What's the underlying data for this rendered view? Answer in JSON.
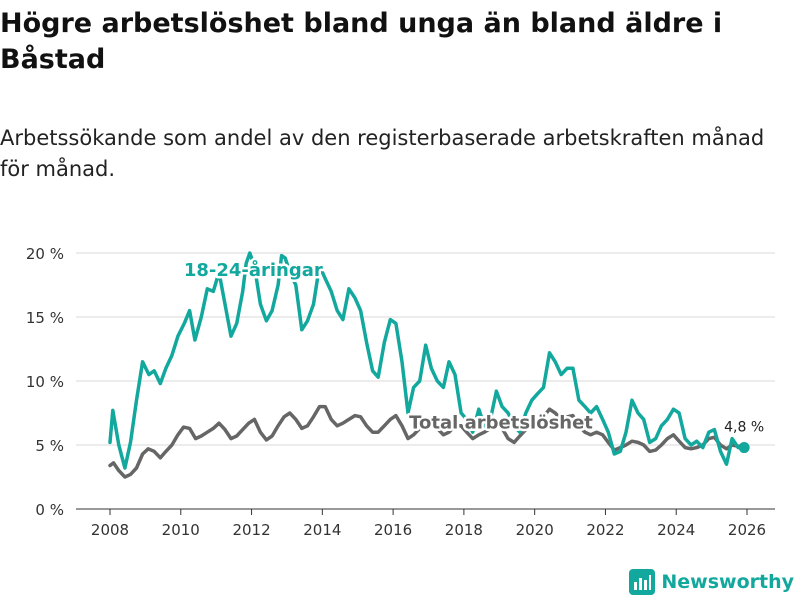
{
  "page": {
    "title": "Högre arbetslöshet bland unga än bland äldre i Båstad",
    "subtitle": "Arbetssökande som andel av den registerbaserade arbetskraften månad för månad."
  },
  "brand": {
    "name": "Newsworthy",
    "icon": "bar-chart-logo-icon",
    "color": "#13a89e"
  },
  "chart_data": {
    "type": "line",
    "title": "Högre arbetslöshet bland unga än bland äldre i Båstad",
    "subtitle": "Arbetssökande som andel av den registerbaserade arbetskraften månad för månad.",
    "xlabel": "",
    "ylabel": "",
    "xlim": [
      2007.5,
      2026.6
    ],
    "ylim": [
      0,
      20
    ],
    "x_ticks": [
      2008,
      2010,
      2012,
      2014,
      2016,
      2018,
      2020,
      2022,
      2024,
      2026
    ],
    "x_tick_labels": [
      "2008",
      "2010",
      "2012",
      "2014",
      "2016",
      "2018",
      "2020",
      "2022",
      "2024",
      "2026"
    ],
    "y_ticks": [
      0,
      5,
      10,
      15,
      20
    ],
    "y_tick_labels": [
      "0 %",
      "5 %",
      "10 %",
      "15 %",
      "20 %"
    ],
    "grid": "horizontal",
    "series": [
      {
        "name": "18-24-åringar",
        "label": "18-24-åringar",
        "color": "#13a89e",
        "points": [
          [
            2008.0,
            5.2
          ],
          [
            2008.08,
            7.7
          ],
          [
            2008.25,
            5.0
          ],
          [
            2008.42,
            3.2
          ],
          [
            2008.58,
            5.2
          ],
          [
            2008.75,
            8.5
          ],
          [
            2008.92,
            11.5
          ],
          [
            2009.1,
            10.5
          ],
          [
            2009.25,
            10.8
          ],
          [
            2009.42,
            9.8
          ],
          [
            2009.58,
            11.0
          ],
          [
            2009.75,
            12.0
          ],
          [
            2009.92,
            13.5
          ],
          [
            2010.1,
            14.5
          ],
          [
            2010.25,
            15.5
          ],
          [
            2010.4,
            13.2
          ],
          [
            2010.58,
            15.0
          ],
          [
            2010.75,
            17.2
          ],
          [
            2010.92,
            17.0
          ],
          [
            2011.08,
            18.5
          ],
          [
            2011.25,
            16.0
          ],
          [
            2011.42,
            13.5
          ],
          [
            2011.58,
            14.5
          ],
          [
            2011.75,
            17.0
          ],
          [
            2011.85,
            19.2
          ],
          [
            2011.95,
            20.0
          ],
          [
            2012.08,
            19.0
          ],
          [
            2012.25,
            16.0
          ],
          [
            2012.42,
            14.7
          ],
          [
            2012.58,
            15.5
          ],
          [
            2012.75,
            17.5
          ],
          [
            2012.85,
            19.8
          ],
          [
            2012.95,
            19.6
          ],
          [
            2013.08,
            18.5
          ],
          [
            2013.25,
            17.5
          ],
          [
            2013.42,
            14.0
          ],
          [
            2013.58,
            14.7
          ],
          [
            2013.75,
            16.0
          ],
          [
            2013.92,
            19.0
          ],
          [
            2014.08,
            18.0
          ],
          [
            2014.25,
            17.0
          ],
          [
            2014.42,
            15.5
          ],
          [
            2014.58,
            14.8
          ],
          [
            2014.75,
            17.2
          ],
          [
            2014.92,
            16.5
          ],
          [
            2015.08,
            15.5
          ],
          [
            2015.25,
            13.0
          ],
          [
            2015.42,
            10.8
          ],
          [
            2015.58,
            10.3
          ],
          [
            2015.75,
            13.0
          ],
          [
            2015.92,
            14.8
          ],
          [
            2016.08,
            14.5
          ],
          [
            2016.25,
            11.5
          ],
          [
            2016.42,
            7.5
          ],
          [
            2016.58,
            9.5
          ],
          [
            2016.75,
            10.0
          ],
          [
            2016.92,
            12.8
          ],
          [
            2017.08,
            11.0
          ],
          [
            2017.25,
            10.0
          ],
          [
            2017.42,
            9.5
          ],
          [
            2017.58,
            11.5
          ],
          [
            2017.75,
            10.5
          ],
          [
            2017.92,
            7.5
          ],
          [
            2018.08,
            7.0
          ],
          [
            2018.25,
            6.0
          ],
          [
            2018.42,
            7.8
          ],
          [
            2018.58,
            6.5
          ],
          [
            2018.75,
            7.0
          ],
          [
            2018.92,
            9.2
          ],
          [
            2019.08,
            8.0
          ],
          [
            2019.25,
            7.5
          ],
          [
            2019.42,
            6.5
          ],
          [
            2019.58,
            6.0
          ],
          [
            2019.75,
            7.5
          ],
          [
            2019.92,
            8.5
          ],
          [
            2020.08,
            9.0
          ],
          [
            2020.25,
            9.5
          ],
          [
            2020.42,
            12.2
          ],
          [
            2020.58,
            11.5
          ],
          [
            2020.75,
            10.5
          ],
          [
            2020.92,
            11.0
          ],
          [
            2021.08,
            11.0
          ],
          [
            2021.25,
            8.5
          ],
          [
            2021.42,
            8.0
          ],
          [
            2021.58,
            7.5
          ],
          [
            2021.75,
            8.0
          ],
          [
            2021.92,
            7.0
          ],
          [
            2022.08,
            6.0
          ],
          [
            2022.25,
            4.3
          ],
          [
            2022.42,
            4.5
          ],
          [
            2022.58,
            6.0
          ],
          [
            2022.75,
            8.5
          ],
          [
            2022.92,
            7.5
          ],
          [
            2023.08,
            7.0
          ],
          [
            2023.25,
            5.2
          ],
          [
            2023.42,
            5.5
          ],
          [
            2023.58,
            6.5
          ],
          [
            2023.75,
            7.0
          ],
          [
            2023.92,
            7.8
          ],
          [
            2024.08,
            7.5
          ],
          [
            2024.25,
            5.5
          ],
          [
            2024.42,
            5.0
          ],
          [
            2024.58,
            5.3
          ],
          [
            2024.75,
            4.8
          ],
          [
            2024.92,
            6.0
          ],
          [
            2025.08,
            6.2
          ],
          [
            2025.25,
            4.5
          ],
          [
            2025.42,
            3.5
          ],
          [
            2025.58,
            5.5
          ],
          [
            2025.75,
            4.8
          ],
          [
            2025.92,
            4.8
          ]
        ]
      },
      {
        "name": "Total arbetslöshet",
        "label": "Total arbetslöshet",
        "color": "#666666",
        "points": [
          [
            2008.0,
            3.4
          ],
          [
            2008.1,
            3.6
          ],
          [
            2008.25,
            3.0
          ],
          [
            2008.42,
            2.5
          ],
          [
            2008.58,
            2.7
          ],
          [
            2008.75,
            3.2
          ],
          [
            2008.92,
            4.3
          ],
          [
            2009.08,
            4.7
          ],
          [
            2009.25,
            4.5
          ],
          [
            2009.42,
            4.0
          ],
          [
            2009.58,
            4.5
          ],
          [
            2009.75,
            5.0
          ],
          [
            2009.92,
            5.8
          ],
          [
            2010.08,
            6.4
          ],
          [
            2010.25,
            6.3
          ],
          [
            2010.42,
            5.5
          ],
          [
            2010.58,
            5.7
          ],
          [
            2010.75,
            6.0
          ],
          [
            2010.92,
            6.3
          ],
          [
            2011.08,
            6.7
          ],
          [
            2011.25,
            6.2
          ],
          [
            2011.42,
            5.5
          ],
          [
            2011.58,
            5.7
          ],
          [
            2011.75,
            6.2
          ],
          [
            2011.92,
            6.7
          ],
          [
            2012.08,
            7.0
          ],
          [
            2012.25,
            6.0
          ],
          [
            2012.42,
            5.4
          ],
          [
            2012.58,
            5.7
          ],
          [
            2012.75,
            6.5
          ],
          [
            2012.92,
            7.2
          ],
          [
            2013.08,
            7.5
          ],
          [
            2013.25,
            7.0
          ],
          [
            2013.42,
            6.3
          ],
          [
            2013.58,
            6.5
          ],
          [
            2013.75,
            7.2
          ],
          [
            2013.92,
            8.0
          ],
          [
            2014.08,
            8.0
          ],
          [
            2014.25,
            7.0
          ],
          [
            2014.42,
            6.5
          ],
          [
            2014.58,
            6.7
          ],
          [
            2014.75,
            7.0
          ],
          [
            2014.92,
            7.3
          ],
          [
            2015.08,
            7.2
          ],
          [
            2015.25,
            6.5
          ],
          [
            2015.42,
            6.0
          ],
          [
            2015.58,
            6.0
          ],
          [
            2015.75,
            6.5
          ],
          [
            2015.92,
            7.0
          ],
          [
            2016.08,
            7.3
          ],
          [
            2016.25,
            6.5
          ],
          [
            2016.42,
            5.5
          ],
          [
            2016.58,
            5.8
          ],
          [
            2016.75,
            6.3
          ],
          [
            2016.92,
            7.0
          ],
          [
            2017.08,
            7.0
          ],
          [
            2017.25,
            6.3
          ],
          [
            2017.42,
            5.8
          ],
          [
            2017.58,
            6.0
          ],
          [
            2017.75,
            6.5
          ],
          [
            2017.92,
            6.5
          ],
          [
            2018.08,
            6.0
          ],
          [
            2018.25,
            5.5
          ],
          [
            2018.42,
            5.8
          ],
          [
            2018.58,
            6.0
          ],
          [
            2018.75,
            6.3
          ],
          [
            2018.92,
            6.5
          ],
          [
            2019.08,
            6.3
          ],
          [
            2019.25,
            5.5
          ],
          [
            2019.42,
            5.2
          ],
          [
            2019.58,
            5.7
          ],
          [
            2019.75,
            6.2
          ],
          [
            2019.92,
            6.8
          ],
          [
            2020.08,
            7.0
          ],
          [
            2020.25,
            7.2
          ],
          [
            2020.42,
            7.8
          ],
          [
            2020.58,
            7.5
          ],
          [
            2020.75,
            7.0
          ],
          [
            2020.92,
            7.2
          ],
          [
            2021.08,
            7.3
          ],
          [
            2021.25,
            6.5
          ],
          [
            2021.42,
            6.0
          ],
          [
            2021.58,
            5.8
          ],
          [
            2021.75,
            6.0
          ],
          [
            2021.92,
            5.8
          ],
          [
            2022.08,
            5.2
          ],
          [
            2022.25,
            4.6
          ],
          [
            2022.42,
            4.8
          ],
          [
            2022.58,
            5.0
          ],
          [
            2022.75,
            5.3
          ],
          [
            2022.92,
            5.2
          ],
          [
            2023.08,
            5.0
          ],
          [
            2023.25,
            4.5
          ],
          [
            2023.42,
            4.6
          ],
          [
            2023.58,
            5.0
          ],
          [
            2023.75,
            5.5
          ],
          [
            2023.92,
            5.8
          ],
          [
            2024.08,
            5.3
          ],
          [
            2024.25,
            4.8
          ],
          [
            2024.42,
            4.7
          ],
          [
            2024.58,
            4.8
          ],
          [
            2024.75,
            5.0
          ],
          [
            2024.92,
            5.5
          ],
          [
            2025.08,
            5.6
          ],
          [
            2025.25,
            5.0
          ],
          [
            2025.42,
            4.7
          ],
          [
            2025.58,
            5.0
          ],
          [
            2025.75,
            4.9
          ],
          [
            2025.92,
            5.0
          ]
        ]
      }
    ],
    "annotations": [
      {
        "text": "18-24-åringar",
        "series": "18-24-åringar",
        "at": [
          2012.05,
          18.2
        ]
      },
      {
        "text": "Total arbetslöshet",
        "series": "Total arbetslöshet",
        "at": [
          2019.05,
          6.3
        ]
      },
      {
        "text": "4,8 %",
        "series": "18-24-åringar",
        "at": [
          2025.92,
          4.8
        ],
        "marker": true
      }
    ]
  }
}
